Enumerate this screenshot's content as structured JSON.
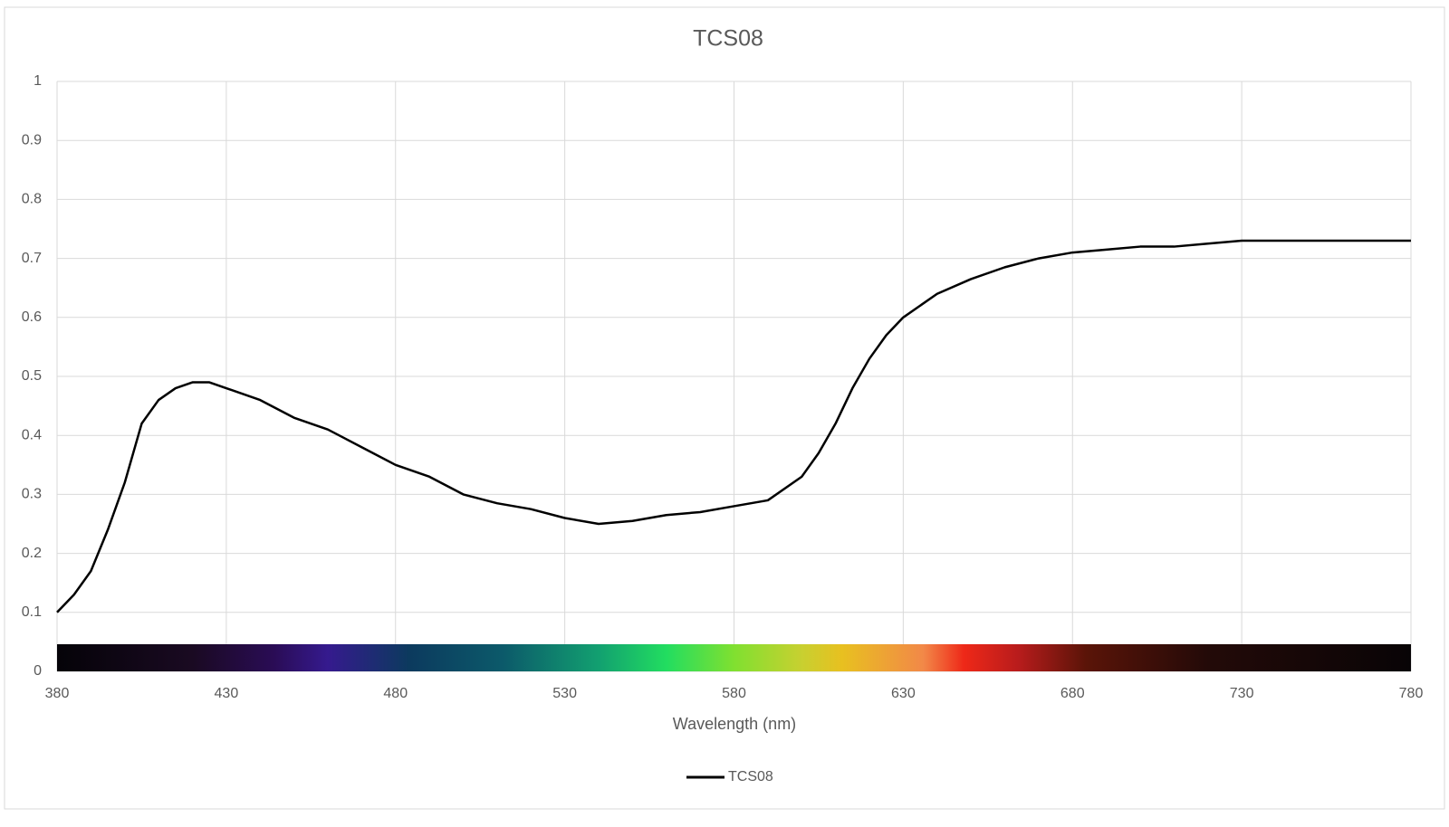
{
  "chart_data": {
    "type": "line",
    "title": "TCS08",
    "x_label": "Wavelength (nm)",
    "x": [
      380,
      385,
      390,
      395,
      400,
      405,
      410,
      415,
      420,
      425,
      430,
      440,
      450,
      460,
      470,
      480,
      490,
      500,
      510,
      520,
      530,
      540,
      550,
      560,
      570,
      580,
      590,
      600,
      605,
      610,
      615,
      620,
      625,
      630,
      640,
      650,
      660,
      670,
      680,
      690,
      700,
      710,
      720,
      730,
      740,
      750,
      760,
      770,
      780
    ],
    "series": [
      {
        "name": "TCS08",
        "color": "#000000",
        "values": [
          0.1,
          0.13,
          0.17,
          0.24,
          0.32,
          0.42,
          0.46,
          0.48,
          0.49,
          0.49,
          0.48,
          0.46,
          0.43,
          0.41,
          0.38,
          0.35,
          0.33,
          0.3,
          0.285,
          0.275,
          0.26,
          0.25,
          0.255,
          0.265,
          0.27,
          0.28,
          0.29,
          0.33,
          0.37,
          0.42,
          0.48,
          0.53,
          0.57,
          0.6,
          0.64,
          0.665,
          0.685,
          0.7,
          0.71,
          0.715,
          0.72,
          0.72,
          0.725,
          0.73,
          0.73,
          0.73,
          0.73,
          0.73,
          0.73
        ]
      }
    ],
    "xlim": [
      380,
      780
    ],
    "xticks": [
      380,
      430,
      480,
      530,
      580,
      630,
      680,
      730,
      780
    ],
    "ylim": [
      0,
      1
    ],
    "yticks": [
      0,
      0.1,
      0.2,
      0.3,
      0.4,
      0.5,
      0.6,
      0.7,
      0.8,
      0.9,
      1
    ],
    "grid": true,
    "legend": "bottom"
  }
}
